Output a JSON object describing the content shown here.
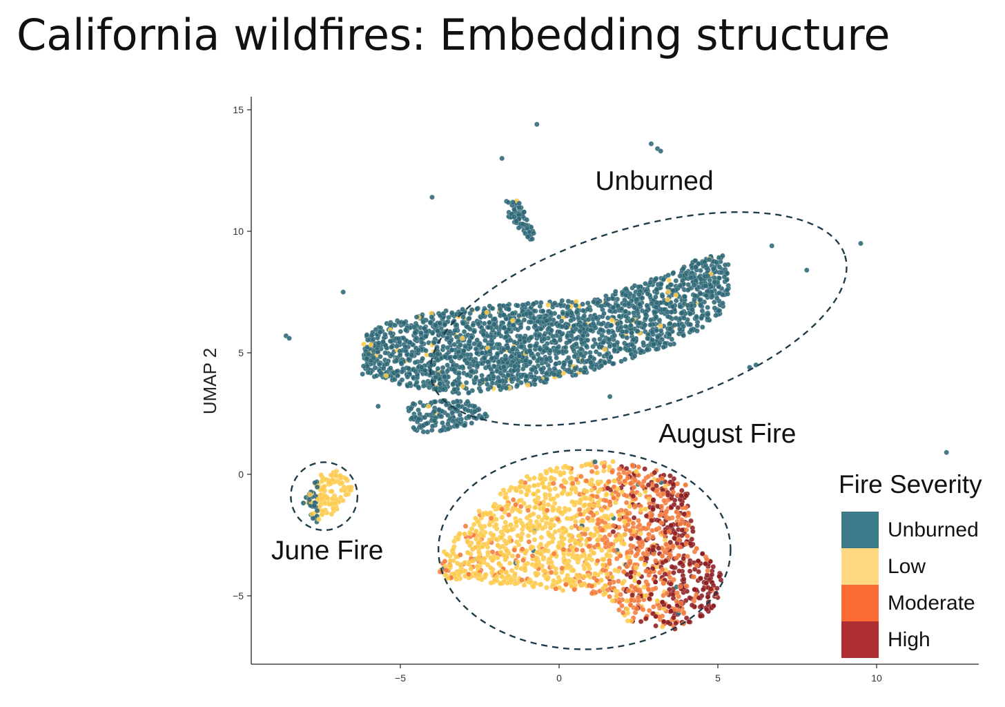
{
  "title": "California wildfires: Embedding structure",
  "chart_data": {
    "type": "scatter",
    "title": "",
    "xlabel": "",
    "ylabel": "UMAP 2",
    "xlim": [
      -9.5,
      13.5
    ],
    "ylim": [
      -7.8,
      15.6
    ],
    "x_ticks": [
      -5,
      0,
      5,
      10
    ],
    "y_ticks": [
      15,
      10,
      5,
      0,
      -5
    ],
    "x_tick_labels": [
      "−5",
      "0",
      "5",
      "10"
    ],
    "y_tick_labels": [
      "15",
      "10",
      "5",
      "0",
      "−5"
    ],
    "grid": false,
    "legend": {
      "title": "Fire Severity",
      "position": "right",
      "entries": [
        {
          "label": "Unburned",
          "color": "#3b7a88"
        },
        {
          "label": "Low",
          "color": "#fed882"
        },
        {
          "label": "Moderate",
          "color": "#fb6a32"
        },
        {
          "label": "High",
          "color": "#ae2f31"
        }
      ]
    },
    "point_colors": {
      "Unburned": "#2c6775",
      "Low": "#fdc94a",
      "Moderate": "#f47b3b",
      "High": "#8d1d20"
    },
    "annotations": [
      {
        "text": "Unburned",
        "x": 3.0,
        "y": 11.7
      },
      {
        "text": "August Fire",
        "x": 5.3,
        "y": 1.3
      },
      {
        "text": "June Fire",
        "x": -7.3,
        "y": -3.5
      }
    ],
    "regions": [
      {
        "name": "Unburned",
        "cx": 2.5,
        "cy": 6.4,
        "rx": 6.8,
        "ry": 3.7,
        "rotation_deg": 17
      },
      {
        "name": "August Fire",
        "cx": 0.8,
        "cy": -3.1,
        "rx": 4.6,
        "ry": 4.1,
        "rotation_deg": 0
      },
      {
        "name": "June Fire",
        "cx": -7.4,
        "cy": -0.9,
        "rx": 1.05,
        "ry": 1.4,
        "rotation_deg": 0
      }
    ],
    "clusters": [
      {
        "name": "Unburned main body",
        "severity": "Unburned",
        "polygon": [
          [
            -6.2,
            5.6
          ],
          [
            -5.6,
            6.2
          ],
          [
            -4.3,
            6.6
          ],
          [
            -2.6,
            6.9
          ],
          [
            0.5,
            7.2
          ],
          [
            2.2,
            7.7
          ],
          [
            3.5,
            8.3
          ],
          [
            4.6,
            9.0
          ],
          [
            5.3,
            9.0
          ],
          [
            5.4,
            7.6
          ],
          [
            5.0,
            6.4
          ],
          [
            3.7,
            5.4
          ],
          [
            1.2,
            4.3
          ],
          [
            -1.0,
            3.6
          ],
          [
            -3.0,
            3.3
          ],
          [
            -4.8,
            3.6
          ],
          [
            -6.2,
            4.1
          ]
        ]
      },
      {
        "name": "Unburned lower lobe",
        "severity": "Unburned",
        "polygon": [
          [
            -4.8,
            3.0
          ],
          [
            -3.0,
            3.1
          ],
          [
            -2.2,
            2.4
          ],
          [
            -3.0,
            1.9
          ],
          [
            -4.0,
            1.7
          ],
          [
            -4.6,
            1.8
          ]
        ]
      },
      {
        "name": "Unburned strand",
        "severity": "Unburned",
        "polygon": [
          [
            -1.9,
            11.2
          ],
          [
            -1.3,
            11.3
          ],
          [
            -0.7,
            9.8
          ],
          [
            -0.9,
            9.6
          ],
          [
            -1.6,
            10.6
          ]
        ]
      },
      {
        "name": "June Fire",
        "severity": "Low",
        "polygon": [
          [
            -7.6,
            0.0
          ],
          [
            -6.8,
            0.2
          ],
          [
            -6.5,
            -0.6
          ],
          [
            -7.1,
            -1.6
          ],
          [
            -7.7,
            -2.1
          ],
          [
            -8.1,
            -1.2
          ]
        ]
      },
      {
        "name": "August Fire",
        "severity": "Low",
        "polygon": [
          [
            -3.7,
            -3.3
          ],
          [
            -3.0,
            -2.1
          ],
          [
            -1.8,
            -0.6
          ],
          [
            -0.6,
            0.2
          ],
          [
            1.5,
            0.6
          ],
          [
            3.0,
            0.2
          ],
          [
            4.0,
            -0.2
          ],
          [
            4.3,
            -2.8
          ],
          [
            5.2,
            -4.3
          ],
          [
            4.9,
            -5.5
          ],
          [
            3.8,
            -6.4
          ],
          [
            2.2,
            -6.1
          ],
          [
            1.5,
            -5.0
          ],
          [
            -1.0,
            -4.6
          ],
          [
            -3.8,
            -4.3
          ]
        ]
      }
    ],
    "outliers": [
      {
        "x": -0.7,
        "y": 14.4
      },
      {
        "x": 2.9,
        "y": 13.6
      },
      {
        "x": 3.1,
        "y": 13.4
      },
      {
        "x": 3.2,
        "y": 13.3
      },
      {
        "x": -1.8,
        "y": 13.0
      },
      {
        "x": -4.0,
        "y": 11.4
      },
      {
        "x": -6.8,
        "y": 7.5
      },
      {
        "x": -8.6,
        "y": 5.7
      },
      {
        "x": -8.5,
        "y": 5.6
      },
      {
        "x": 6.7,
        "y": 9.4
      },
      {
        "x": 7.8,
        "y": 8.4
      },
      {
        "x": 9.5,
        "y": 9.5
      },
      {
        "x": 12.2,
        "y": 0.9
      },
      {
        "x": 1.6,
        "y": 3.2
      },
      {
        "x": -5.7,
        "y": 2.8
      },
      {
        "x": 6.2,
        "y": 4.5
      },
      {
        "x": 6.0,
        "y": 4.4
      }
    ],
    "data_note_fields_omitted": []
  }
}
